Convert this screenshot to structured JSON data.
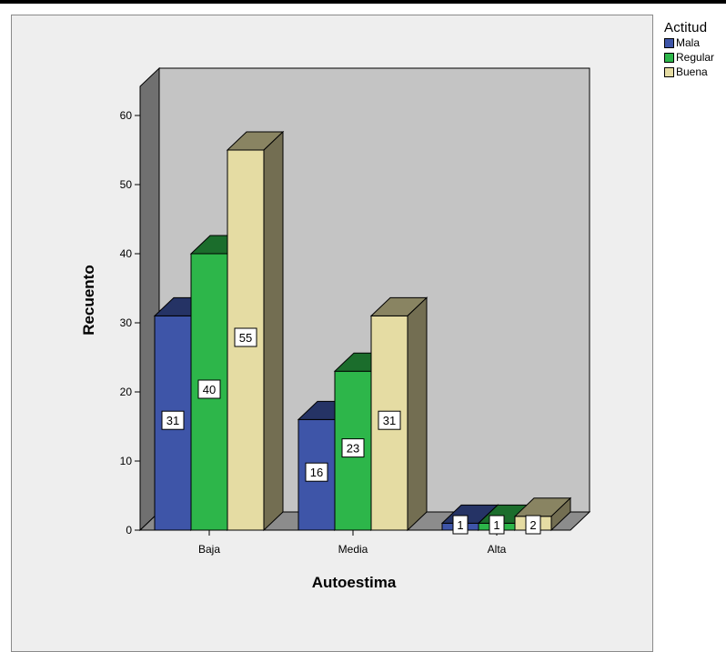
{
  "chart_data": {
    "type": "bar",
    "xlabel": "Autoestima",
    "ylabel": "Recuento",
    "categories": [
      "Baja",
      "Media",
      "Alta"
    ],
    "ylim": [
      0,
      60
    ],
    "yticks": [
      0,
      10,
      20,
      30,
      40,
      50,
      60
    ],
    "legend_title": "Actitud",
    "legend_position": "top-right",
    "series": [
      {
        "name": "Mala",
        "values": [
          31,
          16,
          1
        ],
        "color": "#3e55a8"
      },
      {
        "name": "Regular",
        "values": [
          40,
          23,
          1
        ],
        "color": "#2db64a"
      },
      {
        "name": "Buena",
        "values": [
          55,
          31,
          2
        ],
        "color": "#e5dca3"
      }
    ],
    "data_labels": true,
    "grid": false,
    "three_d": true
  },
  "colors": {
    "plot_background": "#eeeeee",
    "back_wall": "#c4c4c4",
    "side_wall": "#707070",
    "floor": "#8c8c8c"
  }
}
